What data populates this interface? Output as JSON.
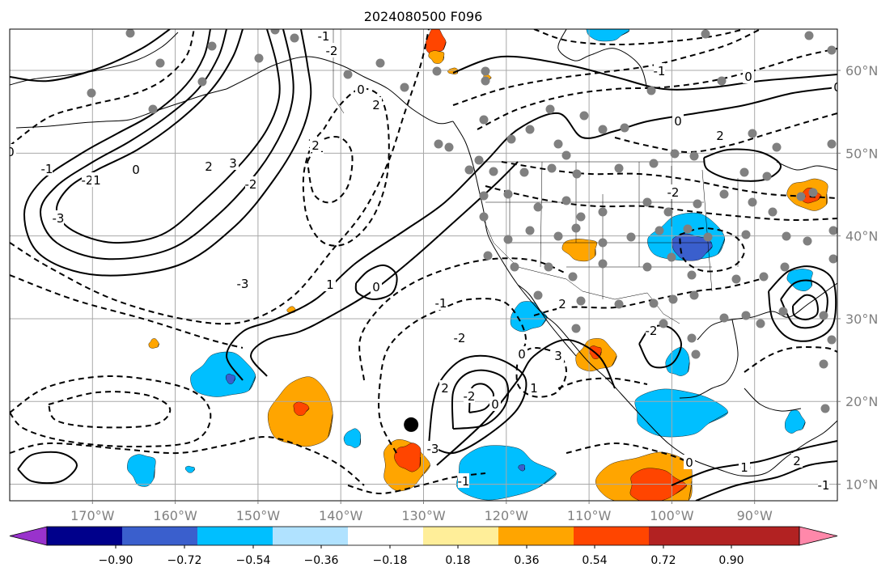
{
  "chart_data": {
    "type": "heatmap",
    "title": "2024080500 F096",
    "x_ticks": [
      "170°W",
      "160°W",
      "150°W",
      "140°W",
      "130°W",
      "120°W",
      "110°W",
      "100°W",
      "90°W"
    ],
    "x_ticks_deg": [
      -170,
      -160,
      -150,
      -140,
      -130,
      -120,
      -110,
      -100,
      -90
    ],
    "y_ticks": [
      "60°N",
      "50°N",
      "40°N",
      "30°N",
      "20°N",
      "10°N"
    ],
    "y_ticks_deg": [
      60,
      50,
      40,
      30,
      20,
      10
    ],
    "extent": {
      "lon": [
        -180,
        -80
      ],
      "lat": [
        8,
        65
      ]
    },
    "grid": true,
    "colorbar": {
      "orientation": "horizontal",
      "extend": "both",
      "tick_labels": [
        "−0.90",
        "−0.72",
        "−0.54",
        "−0.36",
        "−0.18",
        "0.18",
        "0.36",
        "0.54",
        "0.72",
        "0.90"
      ],
      "levels": [
        -0.9,
        -0.72,
        -0.54,
        -0.36,
        -0.18,
        0.18,
        0.36,
        0.54,
        0.72,
        0.9
      ],
      "colors": [
        "#9932cc",
        "#00008b",
        "#3a5fcd",
        "#00bfff",
        "#b0e2ff",
        "#ffffff",
        "#ffee99",
        "#ffa500",
        "#ff4500",
        "#b22222",
        "#ff88aa"
      ]
    },
    "contour_labels": [
      "0",
      "-1",
      "-2",
      "-3",
      "1",
      "2",
      "3",
      "0",
      "-1",
      "-2",
      "-3",
      "1",
      "2",
      "0",
      "-2",
      "-1",
      "2",
      "1",
      "0",
      "-1",
      "-2",
      "2",
      "-2",
      "-3",
      "0",
      "2",
      "3",
      "1",
      "0",
      "-1",
      "-2",
      "0",
      "-1",
      "2",
      "1",
      "0",
      "-2",
      "2",
      "0",
      "0",
      "-1"
    ],
    "marker": {
      "type": "dot",
      "lon": -131.5,
      "lat": 17.2,
      "color": "#000000"
    },
    "stations": {
      "color": "#808080",
      "count": 104
    }
  }
}
